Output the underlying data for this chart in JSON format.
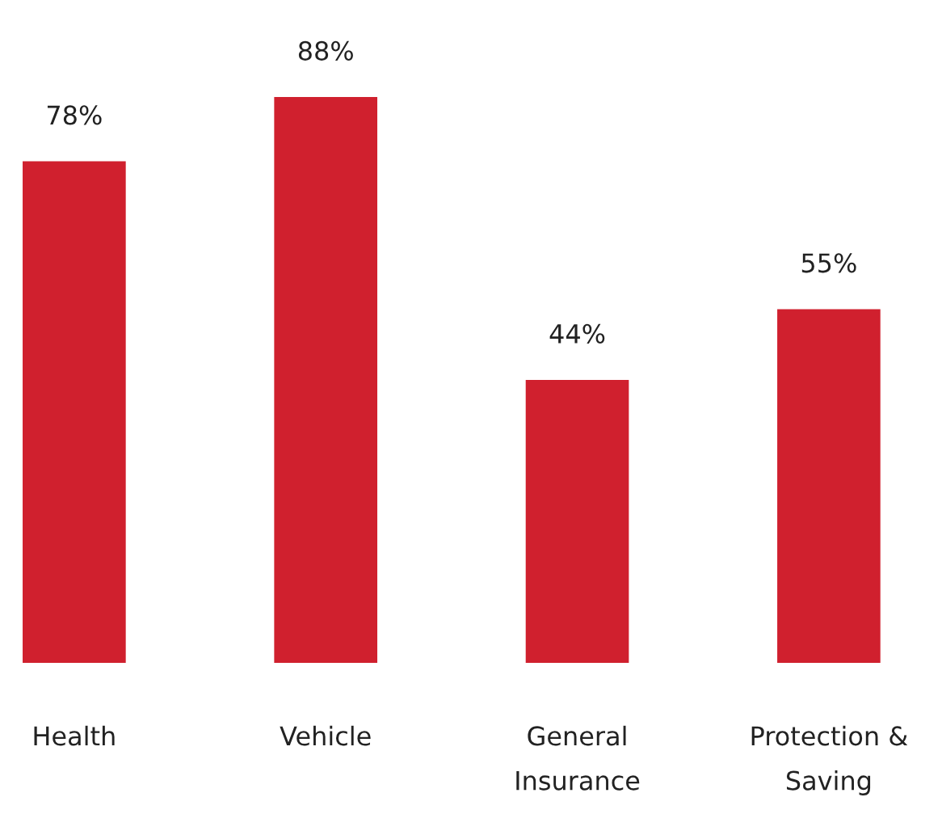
{
  "chart_data": {
    "type": "bar",
    "categories": [
      "Health",
      "Vehicle",
      "General\nInsurance",
      "Protection &\nSaving"
    ],
    "values": [
      78,
      88,
      44,
      55
    ],
    "value_labels": [
      "78%",
      "88%",
      "44%",
      "55%"
    ],
    "color": "#d0202e",
    "grid": false,
    "legend": false
  }
}
